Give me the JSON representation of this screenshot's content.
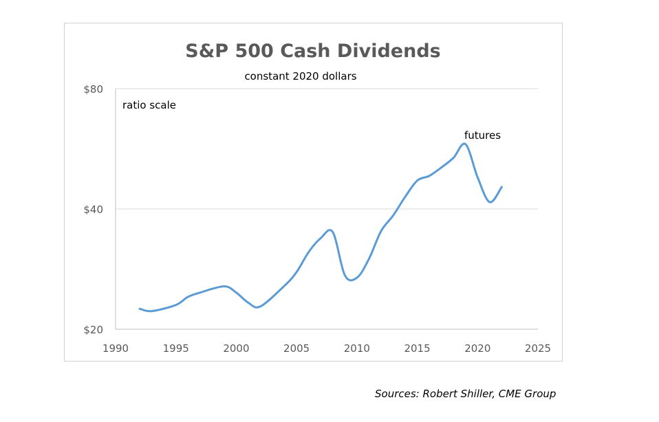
{
  "chart_data": {
    "type": "line",
    "title": "S&P 500 Cash Dividends",
    "subtitle": "constant 2020 dollars",
    "xlabel": "",
    "ylabel": "",
    "xlim": [
      1990,
      2025
    ],
    "ylim": [
      20,
      80
    ],
    "yscale": "log2",
    "x_ticks": [
      "1990",
      "1995",
      "2000",
      "2005",
      "2010",
      "2015",
      "2020",
      "2025"
    ],
    "y_ticks": [
      "$20",
      "$40",
      "$80"
    ],
    "grid": true,
    "color": "#5b9bd5",
    "annotations": [
      "ratio scale",
      "futures"
    ],
    "series": [
      {
        "name": "S&P 500 Cash Dividends",
        "x": [
          1992,
          1993,
          1995,
          1996,
          1997,
          1999,
          2000,
          2001,
          2002,
          2004,
          2005,
          2006,
          2007,
          2008,
          2009,
          2010,
          2011,
          2012,
          2013,
          2014,
          2015,
          2016,
          2017,
          2018,
          2019,
          2020,
          2021,
          2022
        ],
        "values": [
          22.5,
          22.2,
          23.0,
          24.1,
          24.7,
          25.6,
          24.7,
          23.3,
          22.8,
          25.7,
          27.8,
          31.2,
          33.8,
          35.0,
          27.3,
          26.9,
          30.0,
          35.2,
          38.5,
          42.9,
          47.1,
          48.4,
          50.8,
          53.7,
          58.1,
          48.0,
          41.6,
          45.4
        ]
      }
    ]
  },
  "source": "Sources: Robert Shiller, CME Group"
}
